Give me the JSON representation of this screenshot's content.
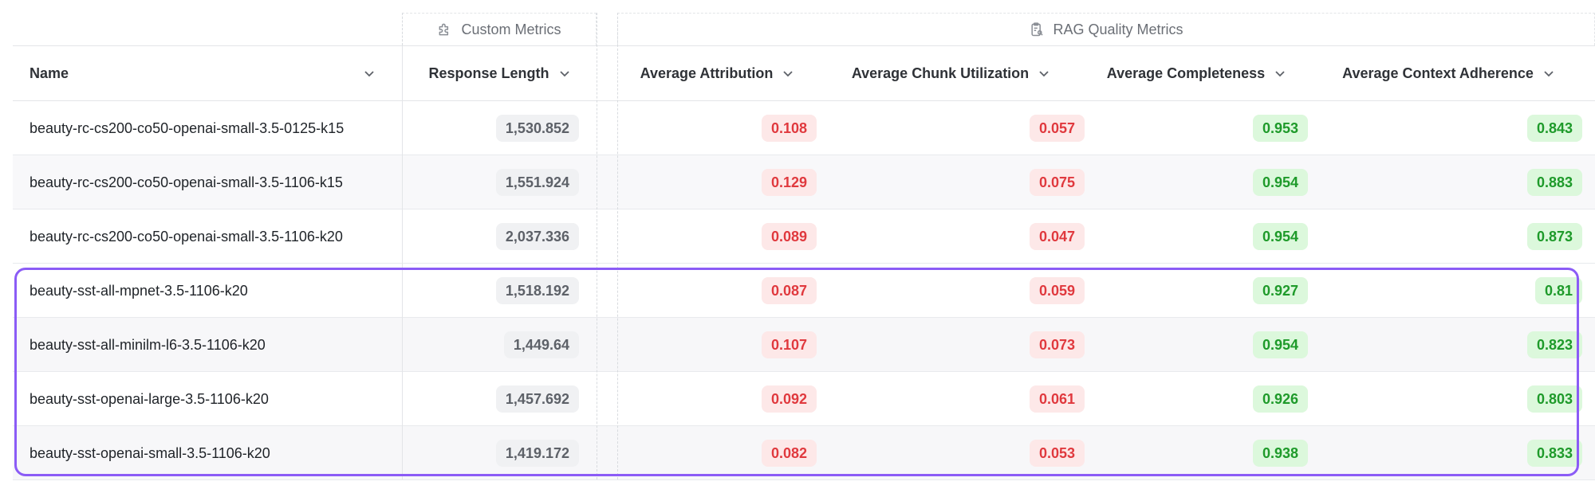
{
  "groups": {
    "custom": "Custom Metrics",
    "rag": "RAG Quality Metrics"
  },
  "columns": {
    "name": "Name",
    "response_length": "Response Length",
    "attribution": "Average Attribution",
    "chunk_utilization": "Average Chunk Utilization",
    "completeness": "Average Completeness",
    "context_adherence": "Average Context Adherence"
  },
  "icons": {
    "custom_group": "puzzle-icon",
    "rag_group": "clipboard-search-icon",
    "sort": "chevron-down-icon"
  },
  "colors": {
    "bad": "#e0393e",
    "good": "#1e9a2a",
    "highlight": "#8b5cf6"
  },
  "rows": [
    {
      "name": "beauty-rc-cs200-co50-openai-small-3.5-0125-k15",
      "response_length": "1,530.852",
      "attribution": "0.108",
      "chunk_utilization": "0.057",
      "completeness": "0.953",
      "context_adherence": "0.843"
    },
    {
      "name": "beauty-rc-cs200-co50-openai-small-3.5-1106-k15",
      "response_length": "1,551.924",
      "attribution": "0.129",
      "chunk_utilization": "0.075",
      "completeness": "0.954",
      "context_adherence": "0.883"
    },
    {
      "name": "beauty-rc-cs200-co50-openai-small-3.5-1106-k20",
      "response_length": "2,037.336",
      "attribution": "0.089",
      "chunk_utilization": "0.047",
      "completeness": "0.954",
      "context_adherence": "0.873"
    },
    {
      "name": "beauty-sst-all-mpnet-3.5-1106-k20",
      "response_length": "1,518.192",
      "attribution": "0.087",
      "chunk_utilization": "0.059",
      "completeness": "0.927",
      "context_adherence": "0.81"
    },
    {
      "name": "beauty-sst-all-minilm-l6-3.5-1106-k20",
      "response_length": "1,449.64",
      "attribution": "0.107",
      "chunk_utilization": "0.073",
      "completeness": "0.954",
      "context_adherence": "0.823"
    },
    {
      "name": "beauty-sst-openai-large-3.5-1106-k20",
      "response_length": "1,457.692",
      "attribution": "0.092",
      "chunk_utilization": "0.061",
      "completeness": "0.926",
      "context_adherence": "0.803"
    },
    {
      "name": "beauty-sst-openai-small-3.5-1106-k20",
      "response_length": "1,419.172",
      "attribution": "0.082",
      "chunk_utilization": "0.053",
      "completeness": "0.938",
      "context_adherence": "0.833"
    }
  ]
}
